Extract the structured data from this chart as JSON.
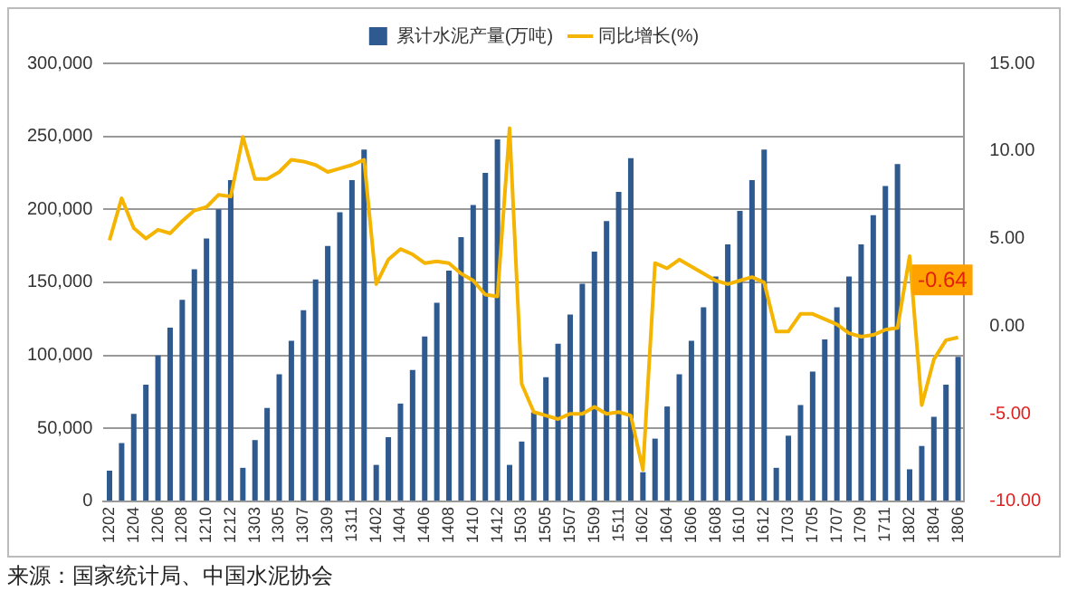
{
  "chart_data": {
    "type": "bar",
    "categories": [
      "1202",
      null,
      "1204",
      null,
      "1206",
      null,
      "1208",
      null,
      "1210",
      null,
      "1212",
      null,
      "1303",
      null,
      "1305",
      null,
      "1307",
      null,
      "1309",
      null,
      "1311",
      null,
      "1402",
      null,
      "1404",
      null,
      "1406",
      null,
      "1408",
      null,
      "1410",
      null,
      "1412",
      null,
      "1503",
      null,
      "1505",
      null,
      "1507",
      null,
      "1509",
      null,
      "1511",
      null,
      "1602",
      null,
      "1604",
      null,
      "1606",
      null,
      "1608",
      null,
      "1610",
      null,
      "1612",
      null,
      "1703",
      null,
      "1705",
      null,
      "1707",
      null,
      "1709",
      null,
      "1711",
      null,
      "1802",
      null,
      "1804",
      null,
      "1806"
    ],
    "series": [
      {
        "name": "累计水泥产量(万吨)",
        "color": "#2f5a8f",
        "values": [
          21000,
          40000,
          60000,
          80000,
          100000,
          119000,
          138000,
          159000,
          180000,
          200000,
          220000,
          23000,
          42000,
          64000,
          87000,
          110000,
          131000,
          152000,
          175000,
          198000,
          220000,
          241000,
          25000,
          44000,
          67000,
          90000,
          113000,
          136000,
          158000,
          181000,
          203000,
          225000,
          248000,
          25000,
          41000,
          61000,
          85000,
          108000,
          128000,
          149000,
          171000,
          192000,
          212000,
          235000,
          20000,
          43000,
          65000,
          87000,
          110000,
          133000,
          154000,
          176000,
          199000,
          220000,
          241000,
          23000,
          45000,
          66000,
          89000,
          111000,
          133000,
          154000,
          176000,
          196000,
          216000,
          231000,
          22000,
          38000,
          58000,
          80000,
          99000
        ]
      },
      {
        "name": "同比增长(%)",
        "type": "line",
        "axis": "y2",
        "color": "#f5b400",
        "values": [
          4.9,
          7.3,
          5.6,
          5.0,
          5.5,
          5.3,
          6.0,
          6.6,
          6.8,
          7.5,
          7.4,
          10.8,
          8.4,
          8.4,
          8.8,
          9.5,
          9.4,
          9.2,
          8.8,
          9.0,
          9.2,
          9.5,
          2.4,
          3.8,
          4.4,
          4.1,
          3.6,
          3.7,
          3.6,
          3.0,
          2.6,
          1.8,
          1.7,
          11.3,
          -3.3,
          -4.9,
          -5.1,
          -5.3,
          -5.0,
          -5.0,
          -4.6,
          -5.0,
          -4.9,
          -5.1,
          -8.2,
          3.6,
          3.3,
          3.8,
          3.4,
          3.0,
          2.6,
          2.4,
          2.6,
          2.8,
          2.5,
          -0.3,
          -0.3,
          0.7,
          0.7,
          0.4,
          0.1,
          -0.4,
          -0.6,
          -0.5,
          -0.2,
          -0.1,
          4.0,
          -4.5,
          -1.9,
          -0.8,
          -0.64
        ]
      }
    ],
    "ylim": [
      0,
      300000
    ],
    "yticks": [
      0,
      {
        "value": 50000,
        "label": "50,000"
      },
      {
        "value": 100000,
        "label": "100,000"
      },
      {
        "value": 150000,
        "label": "150,000"
      },
      {
        "value": 200000,
        "label": "200,000"
      },
      {
        "value": 250000,
        "label": "250,000"
      },
      {
        "value": 300000,
        "label": "300,000"
      }
    ],
    "y2lim": [
      -10,
      15
    ],
    "y2ticks": [
      {
        "value": -10,
        "label": "-10.00"
      },
      {
        "value": -5,
        "label": "-5.00"
      },
      {
        "value": 0,
        "label": "0.00"
      },
      {
        "value": 5,
        "label": "5.00"
      },
      {
        "value": 10,
        "label": "10.00"
      },
      {
        "value": 15,
        "label": "15.00"
      }
    ],
    "grid": "y",
    "legend": "top",
    "marker": "none",
    "line_style": "solid",
    "annotations": [
      "-0.64",
      "来源：国家统计局、中国水泥协会"
    ]
  }
}
